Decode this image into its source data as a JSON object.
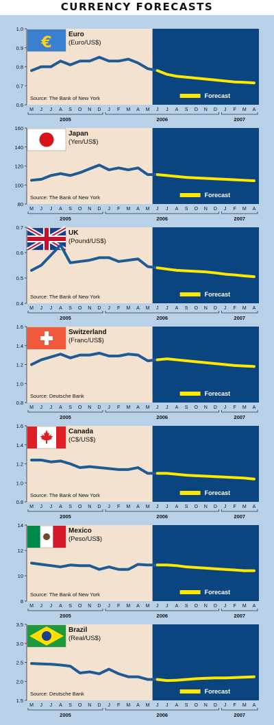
{
  "page": {
    "title": "CURRENCY FORECASTS"
  },
  "colors": {
    "background": "#b8d0e8",
    "history_panel": "#f2e2cf",
    "forecast_panel": "#0a4580",
    "history_line": "#1e5a93",
    "forecast_line": "#ffe800"
  },
  "chart_data": [
    {
      "type": "line",
      "title": "Euro",
      "subtitle": "(Euro/US$)",
      "source": "Source: The Bank of New York",
      "flag_icon": "eu-flag-icon",
      "ylim": [
        0.6,
        1.0
      ],
      "yticks": [
        "1.0",
        "0.9",
        "0.8",
        "0.7",
        "0.6"
      ],
      "ytick_values": [
        1.0,
        0.9,
        0.8,
        0.7,
        0.6
      ],
      "months": [
        "M",
        "J",
        "J",
        "A",
        "S",
        "O",
        "N",
        "D",
        "J",
        "F",
        "M",
        "A",
        "M",
        "J",
        "J",
        "A",
        "S",
        "O",
        "N",
        "D",
        "J",
        "F",
        "M",
        "A"
      ],
      "years": [
        {
          "label": "2005",
          "start": 0,
          "end": 7
        },
        {
          "label": "2006",
          "start": 8,
          "end": 19
        },
        {
          "label": "2007",
          "start": 20,
          "end": 23
        }
      ],
      "forecast_start": 13,
      "legend": {
        "forecast": "Forecast"
      },
      "series": [
        {
          "name": "Actual",
          "x": [
            0,
            1,
            2,
            3,
            4,
            5,
            6,
            7,
            8,
            9,
            10,
            11,
            12,
            13
          ],
          "values": [
            0.78,
            0.8,
            0.8,
            0.83,
            0.81,
            0.83,
            0.83,
            0.85,
            0.83,
            0.83,
            0.84,
            0.82,
            0.79,
            0.78
          ]
        },
        {
          "name": "Forecast",
          "x": [
            13,
            14,
            15,
            16,
            17,
            18,
            19,
            20,
            21,
            22,
            23
          ],
          "values": [
            0.78,
            0.76,
            0.75,
            0.745,
            0.74,
            0.735,
            0.73,
            0.725,
            0.72,
            0.718,
            0.715
          ]
        }
      ]
    },
    {
      "type": "line",
      "title": "Japan",
      "subtitle": "(Yen/US$)",
      "source": "Source: The Bank of New York",
      "flag_icon": "japan-flag-icon",
      "ylim": [
        80,
        160
      ],
      "yticks": [
        "160",
        "140",
        "120",
        "100",
        "80"
      ],
      "ytick_values": [
        160,
        140,
        120,
        100,
        80
      ],
      "months": [
        "M",
        "J",
        "J",
        "A",
        "S",
        "O",
        "N",
        "D",
        "J",
        "F",
        "M",
        "A",
        "M",
        "J",
        "J",
        "A",
        "S",
        "O",
        "N",
        "D",
        "J",
        "F",
        "M",
        "A"
      ],
      "years": [
        {
          "label": "2005",
          "start": 0,
          "end": 7
        },
        {
          "label": "2006",
          "start": 8,
          "end": 19
        },
        {
          "label": "2007",
          "start": 20,
          "end": 23
        }
      ],
      "forecast_start": 13,
      "legend": {
        "forecast": "Forecast"
      },
      "series": [
        {
          "name": "Actual",
          "x": [
            0,
            1,
            2,
            3,
            4,
            5,
            6,
            7,
            8,
            9,
            10,
            11,
            12,
            13
          ],
          "values": [
            105,
            106,
            110,
            112,
            110,
            113,
            117,
            121,
            116,
            118,
            116,
            118,
            111,
            111
          ]
        },
        {
          "name": "Forecast",
          "x": [
            13,
            14,
            15,
            16,
            17,
            18,
            19,
            20,
            21,
            22,
            23
          ],
          "values": [
            111,
            110,
            109,
            108,
            107.5,
            107,
            106.5,
            106,
            105.5,
            105,
            104.5
          ]
        }
      ]
    },
    {
      "type": "line",
      "title": "UK",
      "subtitle": "(Pound/US$)",
      "source": "Source: The Bank of New York",
      "flag_icon": "uk-flag-icon",
      "ylim": [
        0.4,
        0.7
      ],
      "yticks": [
        "0.7",
        "0.6",
        "0.5",
        "0.4"
      ],
      "ytick_values": [
        0.7,
        0.6,
        0.5,
        0.4
      ],
      "months": [
        "M",
        "J",
        "J",
        "A",
        "S",
        "O",
        "N",
        "D",
        "J",
        "F",
        "M",
        "A",
        "M",
        "J",
        "J",
        "A",
        "S",
        "O",
        "N",
        "D",
        "J",
        "F",
        "M",
        "A"
      ],
      "years": [
        {
          "label": "2005",
          "start": 0,
          "end": 7
        },
        {
          "label": "2006",
          "start": 8,
          "end": 19
        },
        {
          "label": "2007",
          "start": 20,
          "end": 23
        }
      ],
      "forecast_start": 13,
      "legend": {
        "forecast": "Forecast"
      },
      "series": [
        {
          "name": "Actual",
          "x": [
            0,
            1,
            2,
            3,
            4,
            5,
            6,
            7,
            8,
            9,
            10,
            11,
            12,
            13
          ],
          "values": [
            0.53,
            0.55,
            0.59,
            0.63,
            0.56,
            0.565,
            0.57,
            0.58,
            0.58,
            0.565,
            0.57,
            0.575,
            0.545,
            0.54
          ]
        },
        {
          "name": "Forecast",
          "x": [
            13,
            14,
            15,
            16,
            17,
            18,
            19,
            20,
            21,
            22,
            23
          ],
          "values": [
            0.54,
            0.535,
            0.53,
            0.528,
            0.526,
            0.524,
            0.52,
            0.515,
            0.512,
            0.508,
            0.505
          ]
        }
      ]
    },
    {
      "type": "line",
      "title": "Switzerland",
      "subtitle": "(Franc/US$)",
      "source": "Source: Deutsche Bank",
      "flag_icon": "swiss-flag-icon",
      "ylim": [
        0.8,
        1.6
      ],
      "yticks": [
        "1.6",
        "1.4",
        "1.2",
        "1.0",
        "0.8"
      ],
      "ytick_values": [
        1.6,
        1.4,
        1.2,
        1.0,
        0.8
      ],
      "months": [
        "M",
        "J",
        "J",
        "A",
        "S",
        "O",
        "N",
        "D",
        "J",
        "F",
        "M",
        "A",
        "M",
        "J",
        "J",
        "A",
        "S",
        "O",
        "N",
        "D",
        "J",
        "F",
        "M",
        "A"
      ],
      "years": [
        {
          "label": "2005",
          "start": 0,
          "end": 7
        },
        {
          "label": "2006",
          "start": 8,
          "end": 19
        },
        {
          "label": "2007",
          "start": 20,
          "end": 23
        }
      ],
      "forecast_start": 13,
      "legend": {
        "forecast": "Forecast"
      },
      "series": [
        {
          "name": "Actual",
          "x": [
            0,
            1,
            2,
            3,
            4,
            5,
            6,
            7,
            8,
            9,
            10,
            11,
            12,
            13
          ],
          "values": [
            1.2,
            1.25,
            1.28,
            1.31,
            1.27,
            1.3,
            1.3,
            1.32,
            1.29,
            1.29,
            1.31,
            1.3,
            1.24,
            1.25
          ]
        },
        {
          "name": "Forecast",
          "x": [
            13,
            14,
            15,
            16,
            17,
            18,
            19,
            20,
            21,
            22,
            23
          ],
          "values": [
            1.25,
            1.26,
            1.25,
            1.24,
            1.23,
            1.22,
            1.21,
            1.2,
            1.19,
            1.185,
            1.18
          ]
        }
      ]
    },
    {
      "type": "line",
      "title": "Canada",
      "subtitle": "(C$/US$)",
      "source": "Source: The Bank of New York",
      "flag_icon": "canada-flag-icon",
      "ylim": [
        0.8,
        1.6
      ],
      "yticks": [
        "1.6",
        "1.4",
        "1.2",
        "1.0",
        "0.8"
      ],
      "ytick_values": [
        1.6,
        1.4,
        1.2,
        1.0,
        0.8
      ],
      "months": [
        "M",
        "J",
        "J",
        "A",
        "S",
        "O",
        "N",
        "D",
        "J",
        "F",
        "M",
        "A",
        "M",
        "J",
        "J",
        "A",
        "S",
        "O",
        "N",
        "D",
        "J",
        "F",
        "M",
        "A"
      ],
      "years": [
        {
          "label": "2005",
          "start": 0,
          "end": 7
        },
        {
          "label": "2006",
          "start": 8,
          "end": 19
        },
        {
          "label": "2007",
          "start": 20,
          "end": 23
        }
      ],
      "forecast_start": 13,
      "legend": {
        "forecast": "Forecast"
      },
      "series": [
        {
          "name": "Actual",
          "x": [
            0,
            1,
            2,
            3,
            4,
            5,
            6,
            7,
            8,
            9,
            10,
            11,
            12,
            13
          ],
          "values": [
            1.24,
            1.24,
            1.22,
            1.23,
            1.2,
            1.16,
            1.17,
            1.16,
            1.15,
            1.14,
            1.14,
            1.16,
            1.1,
            1.1
          ]
        },
        {
          "name": "Forecast",
          "x": [
            13,
            14,
            15,
            16,
            17,
            18,
            19,
            20,
            21,
            22,
            23
          ],
          "values": [
            1.1,
            1.1,
            1.09,
            1.08,
            1.075,
            1.07,
            1.065,
            1.06,
            1.055,
            1.05,
            1.04
          ]
        }
      ]
    },
    {
      "type": "line",
      "title": "Mexico",
      "subtitle": "(Peso/US$)",
      "source": "Source: The Bank of New York",
      "flag_icon": "mexico-flag-icon",
      "ylim": [
        8,
        14
      ],
      "yticks": [
        "14",
        "12",
        "10",
        "8"
      ],
      "ytick_values": [
        14,
        12,
        10,
        8
      ],
      "months": [
        "M",
        "J",
        "J",
        "A",
        "S",
        "O",
        "N",
        "D",
        "J",
        "F",
        "M",
        "A",
        "M",
        "J",
        "J",
        "A",
        "S",
        "O",
        "N",
        "D",
        "J",
        "F",
        "M",
        "A"
      ],
      "years": [
        {
          "label": "2005",
          "start": 0,
          "end": 7
        },
        {
          "label": "2006",
          "start": 8,
          "end": 19
        },
        {
          "label": "2007",
          "start": 20,
          "end": 23
        }
      ],
      "forecast_start": 13,
      "legend": {
        "forecast": "Forecast"
      },
      "series": [
        {
          "name": "Actual",
          "x": [
            0,
            1,
            2,
            3,
            4,
            5,
            6,
            7,
            8,
            9,
            10,
            11,
            12,
            13
          ],
          "values": [
            11.0,
            10.9,
            10.8,
            10.7,
            10.85,
            10.8,
            10.8,
            10.5,
            10.7,
            10.5,
            10.5,
            10.9,
            10.85,
            10.85
          ]
        },
        {
          "name": "Forecast",
          "x": [
            13,
            14,
            15,
            16,
            17,
            18,
            19,
            20,
            21,
            22,
            23
          ],
          "values": [
            10.85,
            10.85,
            10.8,
            10.7,
            10.65,
            10.6,
            10.55,
            10.5,
            10.45,
            10.4,
            10.4
          ]
        }
      ]
    },
    {
      "type": "line",
      "title": "Brazil",
      "subtitle": "(Real/US$)",
      "source": "Source: Deutsche Bank",
      "flag_icon": "brazil-flag-icon",
      "ylim": [
        1.5,
        3.5
      ],
      "yticks": [
        "3.5",
        "3.0",
        "2.5",
        "2.0",
        "1.5"
      ],
      "ytick_values": [
        3.5,
        3.0,
        2.5,
        2.0,
        1.5
      ],
      "months": [
        "M",
        "J",
        "J",
        "A",
        "S",
        "O",
        "N",
        "D",
        "J",
        "F",
        "M",
        "A",
        "M",
        "J",
        "J",
        "A",
        "S",
        "O",
        "N",
        "D",
        "J",
        "F",
        "M",
        "A"
      ],
      "years": [
        {
          "label": "2005",
          "start": 0,
          "end": 7
        },
        {
          "label": "2006",
          "start": 8,
          "end": 19
        },
        {
          "label": "2007",
          "start": 20,
          "end": 23
        }
      ],
      "forecast_start": 13,
      "legend": {
        "forecast": "Forecast"
      },
      "series": [
        {
          "name": "Actual",
          "x": [
            0,
            1,
            2,
            3,
            4,
            5,
            6,
            7,
            8,
            9,
            10,
            11,
            12,
            13
          ],
          "values": [
            2.47,
            2.46,
            2.45,
            2.43,
            2.4,
            2.22,
            2.25,
            2.2,
            2.32,
            2.2,
            2.12,
            2.12,
            2.05,
            2.05
          ]
        },
        {
          "name": "Forecast",
          "x": [
            13,
            14,
            15,
            16,
            17,
            18,
            19,
            20,
            21,
            22,
            23
          ],
          "values": [
            2.05,
            2.02,
            2.03,
            2.05,
            2.07,
            2.08,
            2.09,
            2.09,
            2.1,
            2.11,
            2.12
          ]
        }
      ]
    }
  ]
}
